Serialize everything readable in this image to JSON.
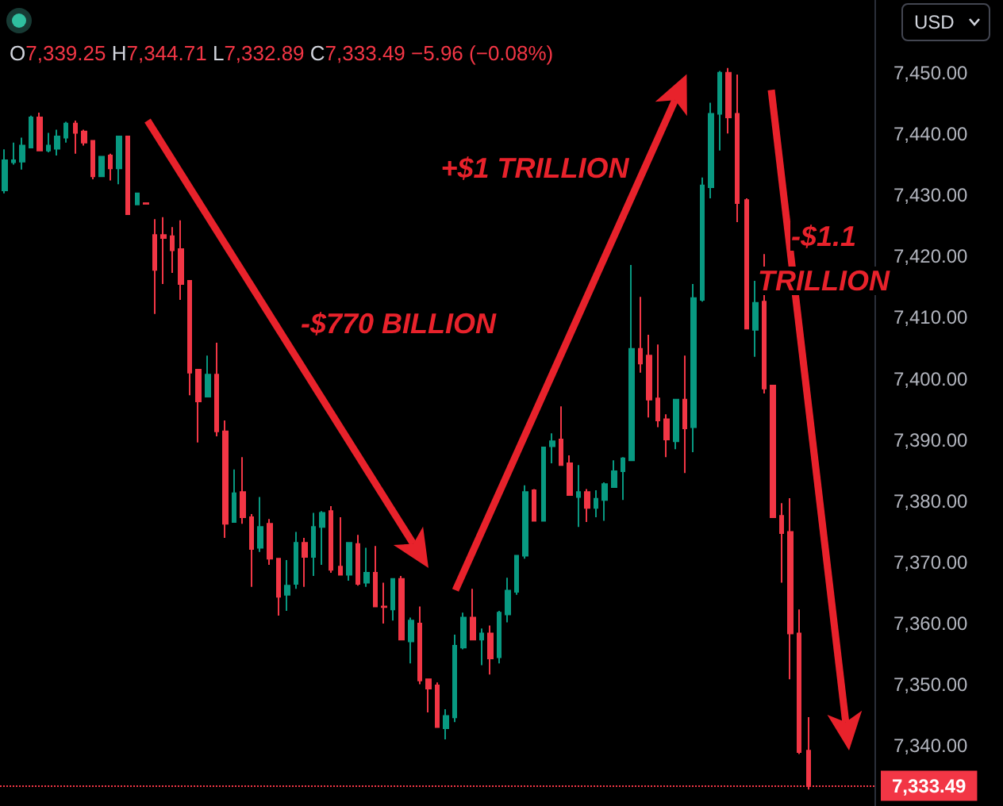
{
  "chart_data": {
    "type": "candlestick",
    "subtitle": "O7,339.25 H7,344.71 L7,332.89 C7,333.49 −5.96 (−0.08%)",
    "annotations": [
      "-$770 BILLION",
      "+$1 TRILLION",
      "-$1.1 TRILLION",
      "USD"
    ],
    "categories": [
      null,
      null,
      null,
      null,
      null,
      null,
      null,
      null,
      null,
      null,
      null,
      null,
      null,
      null,
      null,
      null,
      null,
      null,
      null,
      null,
      null,
      null,
      null,
      null,
      null,
      null,
      null,
      null,
      null,
      null,
      null,
      null,
      null,
      null,
      null,
      null,
      null,
      null,
      null,
      null,
      null,
      null,
      null,
      null,
      null,
      null,
      null,
      null,
      null,
      null,
      null,
      null,
      null,
      null,
      null,
      null,
      null,
      null,
      null,
      null,
      null,
      null,
      null,
      null,
      null,
      null,
      null,
      null,
      null,
      null,
      null,
      null,
      null,
      null,
      null,
      null,
      null,
      null,
      null,
      null,
      null,
      null,
      null,
      null,
      null,
      null,
      null,
      null,
      null,
      null,
      null,
      null,
      null,
      null,
      null,
      null,
      null,
      null,
      null
    ],
    "ohlc": [
      [
        7430.8,
        7437.5,
        7430.3,
        7435.7
      ],
      [
        7435.4,
        7438.6,
        7435.0,
        7435.7
      ],
      [
        7435.5,
        7439.4,
        7434.2,
        7438.1
      ],
      [
        7437.8,
        7443.0,
        7437.8,
        7442.7
      ],
      [
        7442.7,
        7443.5,
        7437.3,
        7437.3
      ],
      [
        7437.3,
        7440.2,
        7437.0,
        7438.1
      ],
      [
        7437.6,
        7440.7,
        7436.5,
        7439.6
      ],
      [
        7439.4,
        7442.0,
        7438.6,
        7441.7
      ],
      [
        7441.7,
        7442.2,
        7436.8,
        7440.2
      ],
      [
        7440.4,
        7440.7,
        7438.1,
        7438.6
      ],
      [
        7438.9,
        7438.9,
        7432.6,
        7433.1
      ],
      [
        7433.1,
        7436.3,
        7433.1,
        7436.3
      ],
      [
        7436.5,
        7436.8,
        7432.4,
        7434.4
      ],
      [
        7434.4,
        7439.6,
        7431.8,
        7439.6
      ],
      [
        7439.6,
        7439.6,
        7426.9,
        7426.9
      ],
      [
        7428.5,
        7430.3,
        7428.5,
        7430.3
      ],
      [
        7428.7,
        7428.7,
        7428.6,
        7428.6
      ],
      [
        7423.5,
        7426.1,
        7410.6,
        7417.8
      ],
      [
        7423.5,
        7426.4,
        7415.5,
        7423.0
      ],
      [
        7423.3,
        7424.8,
        7417.3,
        7421.0
      ],
      [
        7421.2,
        7425.9,
        7412.9,
        7415.5
      ],
      [
        7416.0,
        7416.0,
        7397.3,
        7401.0
      ],
      [
        7401.5,
        7401.5,
        7389.6,
        7396.3
      ],
      [
        7397.1,
        7403.8,
        7397.1,
        7400.7
      ],
      [
        7400.7,
        7405.9,
        7390.6,
        7391.4
      ],
      [
        7391.4,
        7393.2,
        7374.0,
        7376.3
      ],
      [
        7376.6,
        7385.2,
        7376.6,
        7381.3
      ],
      [
        7381.5,
        7387.2,
        7376.3,
        7377.4
      ],
      [
        7377.4,
        7377.9,
        7366.0,
        7372.2
      ],
      [
        7372.4,
        7380.7,
        7371.7,
        7375.8
      ],
      [
        7376.3,
        7377.1,
        7369.6,
        7370.6
      ],
      [
        7370.6,
        7370.6,
        7361.3,
        7364.4
      ],
      [
        7364.7,
        7370.4,
        7362.1,
        7366.2
      ],
      [
        7366.5,
        7375.0,
        7365.7,
        7373.2
      ],
      [
        7373.2,
        7374.0,
        7366.0,
        7370.9
      ],
      [
        7370.9,
        7378.1,
        7367.8,
        7375.8
      ],
      [
        7375.8,
        7378.4,
        7369.6,
        7378.1
      ],
      [
        7378.4,
        7379.2,
        7368.3,
        7368.8
      ],
      [
        7369.3,
        7377.4,
        7368.0,
        7368.0
      ],
      [
        7368.0,
        7373.2,
        7367.0,
        7373.2
      ],
      [
        7373.0,
        7374.5,
        7366.2,
        7366.5
      ],
      [
        7366.7,
        7372.4,
        7366.0,
        7368.3
      ],
      [
        7368.3,
        7372.7,
        7362.8,
        7362.8
      ],
      [
        7362.8,
        7366.7,
        7360.0,
        7362.7
      ],
      [
        7362.3,
        7367.3,
        7360.5,
        7367.3
      ],
      [
        7367.3,
        7367.8,
        7357.4,
        7357.4
      ],
      [
        7357.1,
        7361.0,
        7353.5,
        7360.5
      ],
      [
        7360.0,
        7362.8,
        7350.1,
        7350.7
      ],
      [
        7350.9,
        7350.9,
        7345.5,
        7349.4
      ],
      [
        7349.9,
        7350.4,
        7343.1,
        7343.1
      ],
      [
        7342.9,
        7346.0,
        7341.1,
        7344.9
      ],
      [
        7344.7,
        7358.2,
        7343.9,
        7356.4
      ],
      [
        7356.1,
        7361.8,
        7355.8,
        7361.0
      ],
      [
        7361.0,
        7365.7,
        7357.4,
        7357.4
      ],
      [
        7357.4,
        7359.2,
        7353.2,
        7358.4
      ],
      [
        7358.4,
        7359.7,
        7351.7,
        7354.3
      ],
      [
        7354.5,
        7362.1,
        7353.5,
        7361.8
      ],
      [
        7361.5,
        7367.5,
        7360.2,
        7365.4
      ],
      [
        7365.2,
        7371.1,
        7364.7,
        7371.1
      ],
      [
        7371.1,
        7382.6,
        7370.6,
        7381.5
      ],
      [
        7381.8,
        7382.0,
        7376.8,
        7376.8
      ],
      [
        7376.8,
        7388.8,
        7376.8,
        7388.8
      ],
      [
        7389.0,
        7391.1,
        7386.2,
        7389.8
      ],
      [
        7390.1,
        7395.5,
        7385.9,
        7385.9
      ],
      [
        7386.2,
        7387.5,
        7381.0,
        7381.0
      ],
      [
        7380.7,
        7385.9,
        7375.8,
        7381.5
      ],
      [
        7381.5,
        7382.0,
        7376.6,
        7378.9
      ],
      [
        7378.9,
        7381.8,
        7377.4,
        7380.4
      ],
      [
        7380.2,
        7383.1,
        7376.8,
        7382.8
      ],
      [
        7382.3,
        7386.7,
        7382.3,
        7384.9
      ],
      [
        7384.9,
        7387.2,
        7380.2,
        7387.0
      ],
      [
        7386.7,
        7418.6,
        7386.7,
        7404.9
      ],
      [
        7404.9,
        7413.4,
        7401.0,
        7402.5
      ],
      [
        7403.8,
        7407.2,
        7393.7,
        7396.6
      ],
      [
        7396.8,
        7405.6,
        7392.1,
        7393.2
      ],
      [
        7393.4,
        7394.2,
        7387.2,
        7390.1
      ],
      [
        7389.8,
        7396.6,
        7388.5,
        7396.6
      ],
      [
        7396.6,
        7403.8,
        7384.6,
        7391.9
      ],
      [
        7392.1,
        7415.5,
        7388.0,
        7413.2
      ],
      [
        7412.9,
        7432.9,
        7412.6,
        7431.6
      ],
      [
        7431.3,
        7445.1,
        7429.5,
        7443.3
      ],
      [
        7443.3,
        7450.3,
        7437.3,
        7450.0
      ],
      [
        7450.0,
        7450.8,
        7440.1,
        7442.7
      ],
      [
        7443.3,
        7449.7,
        7425.6,
        7428.7
      ],
      [
        7429.2,
        7429.5,
        7408.2,
        7408.2
      ],
      [
        7408.0,
        7416.0,
        7403.6,
        7412.4
      ],
      [
        7412.6,
        7420.4,
        7397.6,
        7398.4
      ],
      [
        7398.9,
        7398.9,
        7377.4,
        7377.4
      ],
      [
        7377.6,
        7379.7,
        7366.7,
        7374.8
      ],
      [
        7375.0,
        7380.5,
        7350.9,
        7358.4
      ],
      [
        7358.4,
        7362.3,
        7338.7,
        7339.0
      ],
      [
        7339.25,
        7344.71,
        7332.89,
        7333.49
      ],
      null,
      null,
      null,
      null,
      null,
      null,
      null
    ],
    "colors": [
      "#089981",
      "#089981",
      "#089981",
      "#089981",
      "#f23645",
      "#089981",
      "#089981",
      "#089981",
      "#f23645",
      "#f23645",
      "#f23645",
      "#089981",
      "#f23645",
      "#089981",
      "#f23645",
      "#089981",
      "#f23645",
      "#f23645",
      "#f23645",
      "#f23645",
      "#f23645",
      "#f23645",
      "#f23645",
      "#089981",
      "#f23645",
      "#f23645",
      "#089981",
      "#f23645",
      "#f23645",
      "#089981",
      "#f23645",
      "#f23645",
      "#089981",
      "#089981",
      "#f23645",
      "#089981",
      "#089981",
      "#f23645",
      "#f23645",
      "#089981",
      "#f23645",
      "#089981",
      "#f23645",
      "#f23645",
      "#089981",
      "#f23645",
      "#089981",
      "#f23645",
      "#f23645",
      "#f23645",
      "#089981",
      "#089981",
      "#089981",
      "#f23645",
      "#089981",
      "#f23645",
      "#089981",
      "#089981",
      "#089981",
      "#089981",
      "#f23645",
      "#089981",
      "#089981",
      "#f23645",
      "#f23645",
      "#089981",
      "#f23645",
      "#089981",
      "#089981",
      "#089981",
      "#089981",
      "#089981",
      "#f23645",
      "#f23645",
      "#f23645",
      "#f23645",
      "#089981",
      "#f23645",
      "#089981",
      "#089981",
      "#089981",
      "#089981",
      "#f23645",
      "#f23645",
      "#f23645",
      "#089981",
      "#f23645",
      "#f23645",
      "#f23645",
      "#f23645",
      "#f23645",
      "#f23645",
      null,
      null,
      null,
      null,
      null,
      null,
      null
    ],
    "ylim": [
      7330.2,
      7461.9
    ],
    "yticks": [
      {
        "value": 7340,
        "label": "7,340.00"
      },
      {
        "value": 7350,
        "label": "7,350.00"
      },
      {
        "value": 7360,
        "label": "7,360.00"
      },
      {
        "value": 7370,
        "label": "7,370.00"
      },
      {
        "value": 7380,
        "label": "7,380.00"
      },
      {
        "value": 7390,
        "label": "7,390.00"
      },
      {
        "value": 7400,
        "label": "7,400.00"
      },
      {
        "value": 7410,
        "label": "7,410.00"
      },
      {
        "value": 7420,
        "label": "7,420.00"
      },
      {
        "value": 7430,
        "label": "7,430.00"
      },
      {
        "value": 7440,
        "label": "7,440.00"
      },
      {
        "value": 7450,
        "label": "7,450.00"
      }
    ],
    "tick_labels": "y",
    "ref_lines": [
      {
        "axis": "y",
        "value": 7333.49,
        "label": "7,333.49",
        "color": "#f23645",
        "line_style": "dotted"
      }
    ]
  }
}
